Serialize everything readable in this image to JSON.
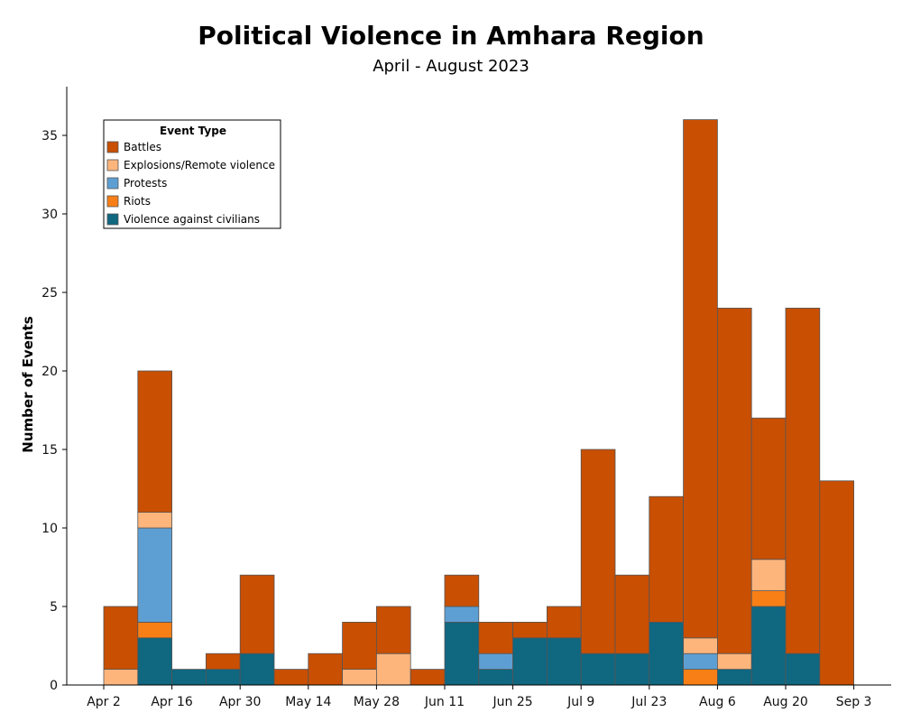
{
  "chart_data": {
    "type": "bar",
    "stacked": true,
    "title": "Political Violence in Amhara Region",
    "subtitle": "April - August 2023",
    "ylabel": "Number of Events",
    "xlabel": "",
    "ylim": [
      0,
      37
    ],
    "yticks": [
      0,
      5,
      10,
      15,
      20,
      25,
      30,
      35
    ],
    "x_tick_labels": [
      "Apr 2",
      "Apr 16",
      "Apr 30",
      "May 14",
      "May 28",
      "Jun 11",
      "Jun 25",
      "Jul 9",
      "Jul 23",
      "Aug 6",
      "Aug 20",
      "Sep 3"
    ],
    "categories": [
      "Apr 2",
      "Apr 9",
      "Apr 16",
      "Apr 23",
      "Apr 30",
      "May 7",
      "May 14",
      "May 21",
      "May 28",
      "Jun 4",
      "Jun 11",
      "Jun 18",
      "Jun 25",
      "Jul 2",
      "Jul 9",
      "Jul 16",
      "Jul 23",
      "Jul 30",
      "Aug 6",
      "Aug 13",
      "Aug 20",
      "Aug 27"
    ],
    "legend_title": "Event Type",
    "legend_position": "top-left",
    "grid": false,
    "series": [
      {
        "name": "Violence against civilians",
        "color": "#0f6780",
        "values": [
          0,
          3,
          1,
          1,
          2,
          0,
          0,
          0,
          0,
          0,
          4,
          1,
          3,
          3,
          2,
          2,
          4,
          0,
          1,
          5,
          2,
          0
        ]
      },
      {
        "name": "Riots",
        "color": "#f87f16",
        "values": [
          0,
          1,
          0,
          0,
          0,
          0,
          0,
          0,
          0,
          0,
          0,
          0,
          0,
          0,
          0,
          0,
          0,
          1,
          0,
          1,
          0,
          0
        ]
      },
      {
        "name": "Protests",
        "color": "#5e9fd3",
        "values": [
          0,
          6,
          0,
          0,
          0,
          0,
          0,
          0,
          0,
          0,
          1,
          1,
          0,
          0,
          0,
          0,
          0,
          1,
          0,
          0,
          0,
          0
        ]
      },
      {
        "name": "Explosions/Remote violence",
        "color": "#fdb57c",
        "values": [
          1,
          1,
          0,
          0,
          0,
          0,
          0,
          1,
          2,
          0,
          0,
          0,
          0,
          0,
          0,
          0,
          0,
          1,
          1,
          2,
          0,
          0
        ]
      },
      {
        "name": "Battles",
        "color": "#c94f03",
        "values": [
          4,
          9,
          0,
          1,
          5,
          1,
          2,
          3,
          3,
          1,
          2,
          2,
          1,
          2,
          13,
          5,
          8,
          33,
          22,
          9,
          22,
          13
        ]
      }
    ],
    "legend_order": [
      "Battles",
      "Explosions/Remote violence",
      "Protests",
      "Riots",
      "Violence against civilians"
    ]
  }
}
